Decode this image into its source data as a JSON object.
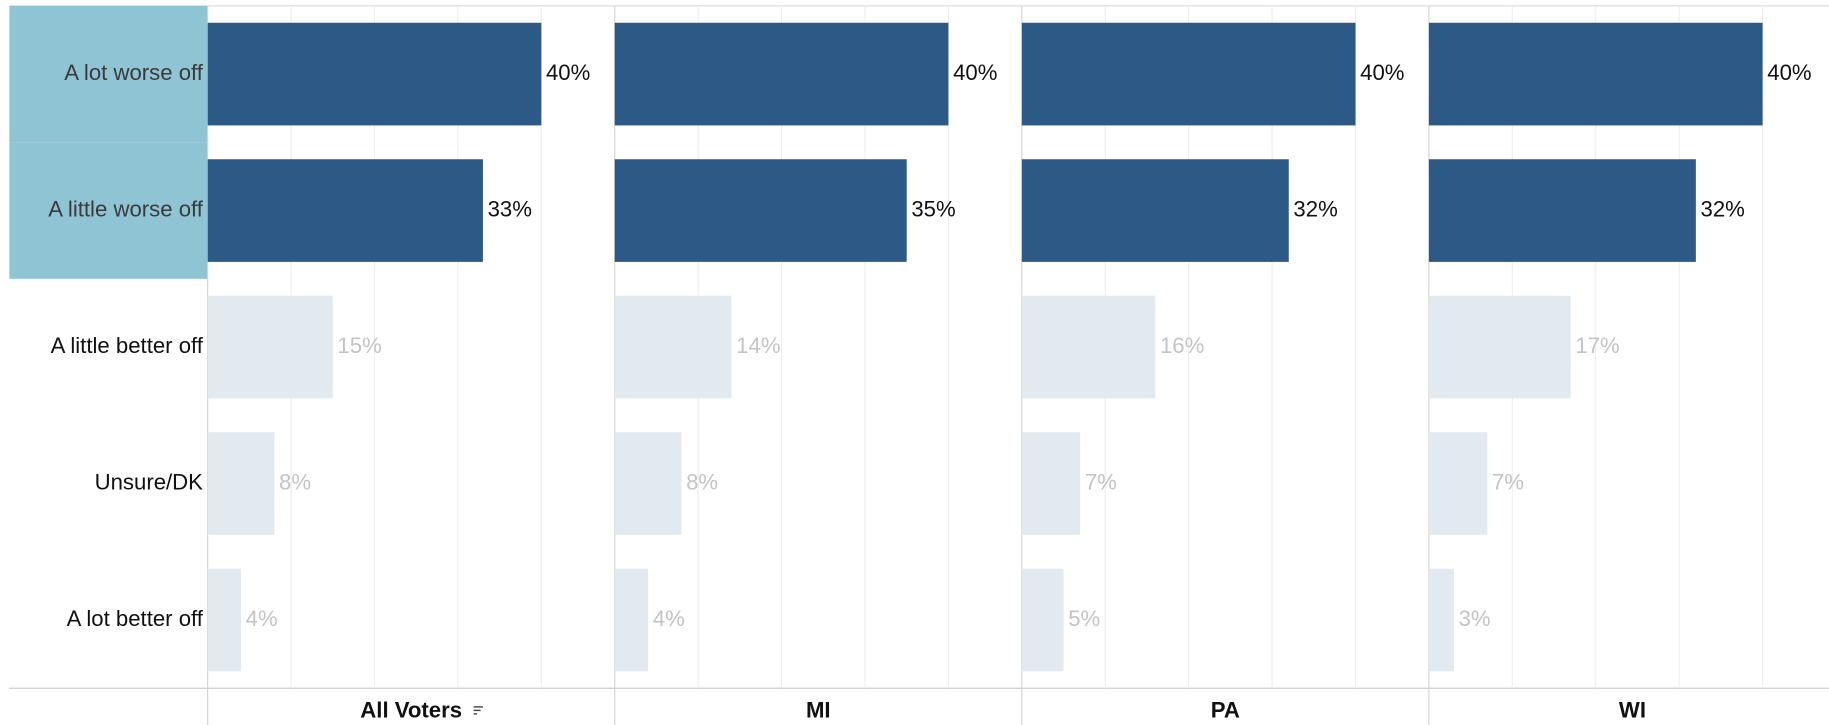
{
  "chart_data": {
    "type": "bar",
    "orientation": "horizontal",
    "categories": [
      "A lot worse off",
      "A little worse off",
      "A little better off",
      "Unsure/DK",
      "A lot better off"
    ],
    "highlighted": [
      0,
      1
    ],
    "highlight_color": "#2c5985",
    "dim_color": "#e2e9ef",
    "label_highlight_color": "#8fc4d4",
    "xlim": [
      0,
      48.8
    ],
    "xticks": [
      0,
      10,
      20,
      30,
      40
    ],
    "grid": true,
    "series": [
      {
        "name": "All Voters",
        "values": [
          40,
          33,
          15,
          8,
          4
        ],
        "value_labels": [
          "40%",
          "33%",
          "15%",
          "8%",
          "4%"
        ]
      },
      {
        "name": "MI",
        "values": [
          40,
          35,
          14,
          8,
          4
        ],
        "value_labels": [
          "40%",
          "35%",
          "14%",
          "8%",
          "4%"
        ]
      },
      {
        "name": "PA",
        "values": [
          40,
          32,
          16,
          7,
          5
        ],
        "value_labels": [
          "40%",
          "32%",
          "16%",
          "7%",
          "5%"
        ]
      },
      {
        "name": "WI",
        "values": [
          40,
          32,
          17,
          7,
          3
        ],
        "value_labels": [
          "40%",
          "32%",
          "17%",
          "7%",
          "3%"
        ]
      }
    ]
  }
}
